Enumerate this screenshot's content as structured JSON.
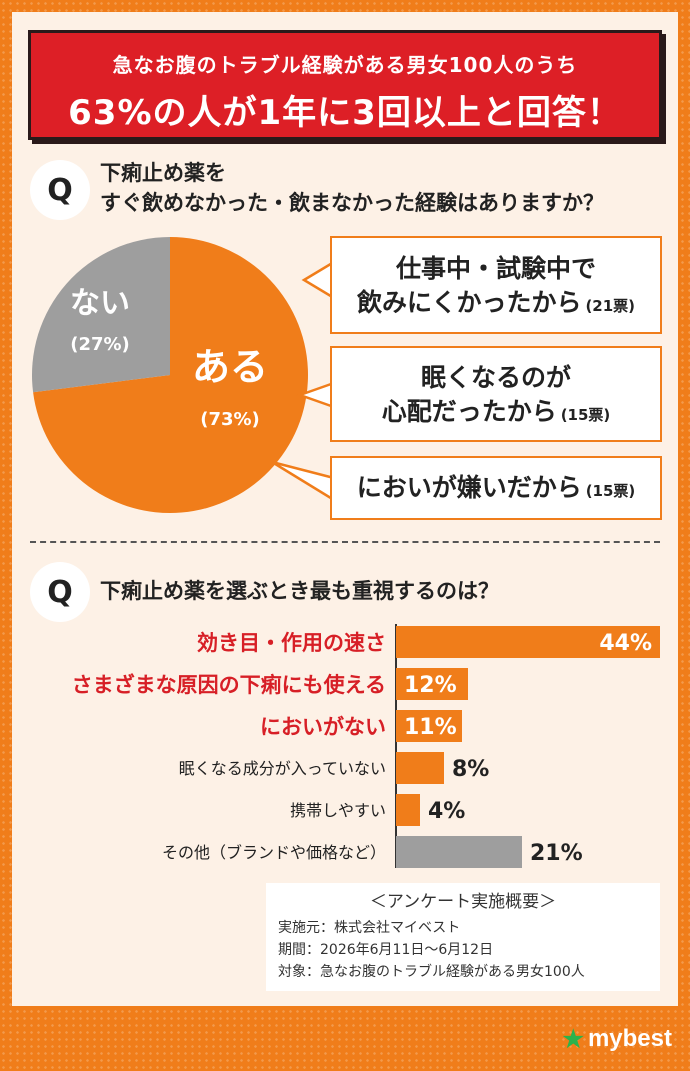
{
  "header": {
    "line1": "急なお腹のトラブル経験がある男女100人のうち",
    "line2": "63%の人が1年に3回以上と回答！"
  },
  "q1": {
    "badge": "Q",
    "line1": "下痢止め薬を",
    "line2": "すぐ飲めなかった・飲まなかった経験はありますか？"
  },
  "q2": {
    "badge": "Q",
    "text": "下痢止め薬を選ぶとき最も重視するのは？"
  },
  "callouts": [
    {
      "line1": "仕事中・試験中で",
      "line2": "飲みにくかったから",
      "votes": "(21票)"
    },
    {
      "line1": "眠くなるのが",
      "line2": "心配だったから",
      "votes": "(15票)"
    },
    {
      "line1": "においが嫌いだから",
      "line2": "",
      "votes": "(15票)"
    }
  ],
  "chart_data": [
    {
      "type": "pie",
      "slices": [
        {
          "label": "ある",
          "value": 73,
          "pct_label": "(73%)",
          "color": "#f07d1a"
        },
        {
          "label": "ない",
          "value": 27,
          "pct_label": "(27%)",
          "color": "#9e9e9e"
        }
      ]
    },
    {
      "type": "bar",
      "orientation": "horizontal",
      "categories": [
        "効き目・作用の速さ",
        "さまざまな原因の下痢にも使える",
        "においがない",
        "眠くなる成分が入っていない",
        "携帯しやすい",
        "その他（ブランドや価格など）"
      ],
      "values": [
        44,
        12,
        11,
        8,
        4,
        21
      ],
      "value_labels": [
        "44%",
        "12%",
        "11%",
        "8%",
        "4%",
        "21%"
      ],
      "highlight": [
        true,
        true,
        true,
        false,
        false,
        false
      ],
      "colors": [
        "#f07d1a",
        "#f07d1a",
        "#f07d1a",
        "#f07d1a",
        "#f07d1a",
        "#9e9e9e"
      ],
      "xlim": [
        0,
        44
      ]
    }
  ],
  "survey": {
    "title": "＜アンケート実施概要＞",
    "lines": [
      "実施元：株式会社マイベスト",
      "期間：2026年6月11日〜6月12日",
      "対象：急なお腹のトラブル経験がある男女100人"
    ]
  },
  "logo": {
    "text": "mybest",
    "icon": "star-icon"
  },
  "colors": {
    "accent": "#f07d1a",
    "red": "#dd1f26",
    "gray": "#9e9e9e",
    "cream": "#fdf1e6"
  }
}
